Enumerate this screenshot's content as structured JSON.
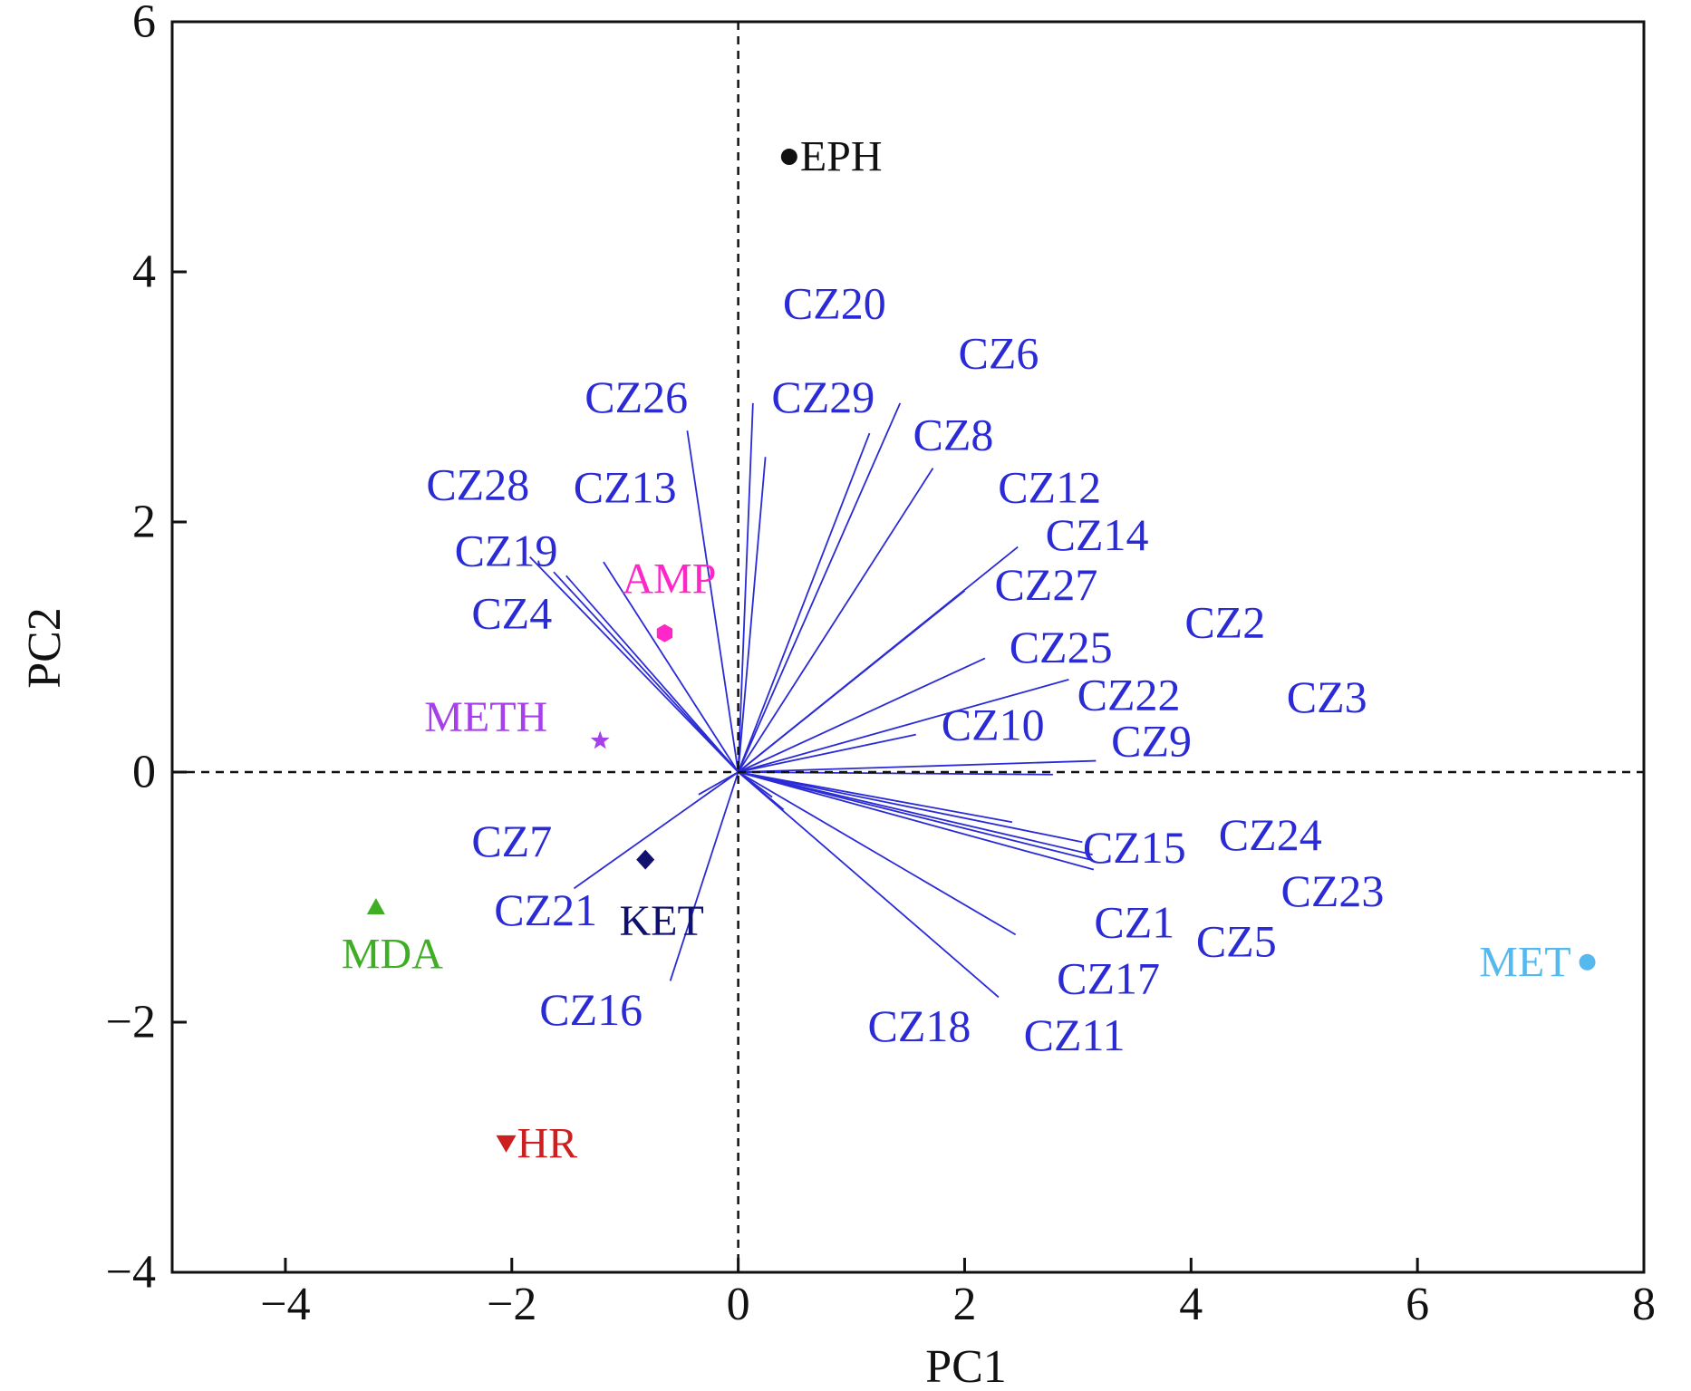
{
  "chart_data": {
    "type": "scatter",
    "subtype": "pca-biplot",
    "title": "",
    "xlabel": "PC1",
    "ylabel": "PC2",
    "xlim": [
      -5,
      8
    ],
    "ylim": [
      -4,
      6
    ],
    "xticks": [
      -4,
      -2,
      0,
      2,
      4,
      6,
      8
    ],
    "yticks": [
      -4,
      -2,
      0,
      2,
      4,
      6
    ],
    "xtick_labels": [
      "−4",
      "−2",
      "0",
      "2",
      "4",
      "6",
      "8"
    ],
    "ytick_labels": [
      "−4",
      "−2",
      "0",
      "2",
      "4",
      "6"
    ],
    "grid": false,
    "reference_lines": {
      "x": 0,
      "y": 0,
      "style": "dashed"
    },
    "loading_color": "#2b2bd6",
    "loadings": [
      {
        "name": "CZ26",
        "x": -0.45,
        "y": 2.73
      },
      {
        "name": "CZ29",
        "x": 0.13,
        "y": 2.95
      },
      {
        "name": "CZ20",
        "x": 0.24,
        "y": 2.52
      },
      {
        "name": "CZ6",
        "x": 1.43,
        "y": 2.95
      },
      {
        "name": "CZ8",
        "x": 1.16,
        "y": 2.71
      },
      {
        "name": "CZ12",
        "x": 1.72,
        "y": 2.43
      },
      {
        "name": "CZ28",
        "x": -1.84,
        "y": 1.72
      },
      {
        "name": "CZ13",
        "x": -1.19,
        "y": 1.68
      },
      {
        "name": "CZ19",
        "x": -1.52,
        "y": 1.57
      },
      {
        "name": "CZ4",
        "x": -1.63,
        "y": 1.6
      },
      {
        "name": "CZ14",
        "x": 2.47,
        "y": 1.8
      },
      {
        "name": "CZ27",
        "x": 2.0,
        "y": 1.45
      },
      {
        "name": "CZ25",
        "x": 2.18,
        "y": 0.91
      },
      {
        "name": "CZ22",
        "x": 2.92,
        "y": 0.74
      },
      {
        "name": "CZ10",
        "x": 1.57,
        "y": 0.3
      },
      {
        "name": "CZ9",
        "x": 3.16,
        "y": 0.09
      },
      {
        "name": "CZ2",
        "x": 2.78,
        "y": -0.02
      },
      {
        "name": "CZ3",
        "x": 2.42,
        "y": -0.4
      },
      {
        "name": "CZ15",
        "x": 3.04,
        "y": -0.56
      },
      {
        "name": "CZ24",
        "x": 3.13,
        "y": -0.66
      },
      {
        "name": "CZ23",
        "x": 3.11,
        "y": -0.7
      },
      {
        "name": "CZ1",
        "x": 3.14,
        "y": -0.78
      },
      {
        "name": "CZ5",
        "x": 2.45,
        "y": -1.3
      },
      {
        "name": "CZ17",
        "x": 2.3,
        "y": -1.8
      },
      {
        "name": "CZ21",
        "x": -1.45,
        "y": -0.93
      },
      {
        "name": "CZ7",
        "x": -0.35,
        "y": -0.18
      },
      {
        "name": "CZ16",
        "x": -0.6,
        "y": -1.67
      },
      {
        "name": "CZ18",
        "x": 0.3,
        "y": -0.2
      },
      {
        "name": "CZ11",
        "x": 0.4,
        "y": -0.3
      }
    ],
    "sample_labels": [
      {
        "text": "CZ20",
        "x": 0.85,
        "y": 3.75
      },
      {
        "text": "CZ6",
        "x": 2.3,
        "y": 3.35
      },
      {
        "text": "CZ26",
        "x": -0.9,
        "y": 3.0
      },
      {
        "text": "CZ29",
        "x": 0.75,
        "y": 3.0
      },
      {
        "text": "CZ8",
        "x": 1.9,
        "y": 2.7
      },
      {
        "text": "CZ28",
        "x": -2.3,
        "y": 2.3
      },
      {
        "text": "CZ13",
        "x": -1.0,
        "y": 2.28
      },
      {
        "text": "CZ12",
        "x": 2.75,
        "y": 2.28
      },
      {
        "text": "CZ14",
        "x": 3.17,
        "y": 1.9
      },
      {
        "text": "CZ19",
        "x": -2.05,
        "y": 1.77
      },
      {
        "text": "CZ27",
        "x": 2.72,
        "y": 1.5
      },
      {
        "text": "CZ4",
        "x": -2.0,
        "y": 1.27
      },
      {
        "text": "CZ2",
        "x": 4.3,
        "y": 1.2
      },
      {
        "text": "CZ25",
        "x": 2.85,
        "y": 1.0
      },
      {
        "text": "CZ22",
        "x": 3.45,
        "y": 0.62
      },
      {
        "text": "CZ3",
        "x": 5.2,
        "y": 0.6
      },
      {
        "text": "CZ10",
        "x": 2.25,
        "y": 0.38
      },
      {
        "text": "CZ9",
        "x": 3.65,
        "y": 0.25
      },
      {
        "text": "CZ7",
        "x": -2.0,
        "y": -0.55
      },
      {
        "text": "CZ24",
        "x": 4.7,
        "y": -0.5
      },
      {
        "text": "CZ15",
        "x": 3.5,
        "y": -0.6
      },
      {
        "text": "CZ23",
        "x": 5.25,
        "y": -0.95
      },
      {
        "text": "CZ21",
        "x": -1.7,
        "y": -1.1
      },
      {
        "text": "CZ1",
        "x": 3.5,
        "y": -1.2
      },
      {
        "text": "CZ5",
        "x": 4.4,
        "y": -1.35
      },
      {
        "text": "CZ17",
        "x": 3.27,
        "y": -1.65
      },
      {
        "text": "CZ16",
        "x": -1.3,
        "y": -1.9
      },
      {
        "text": "CZ18",
        "x": 1.6,
        "y": -2.03
      },
      {
        "text": "CZ11",
        "x": 2.97,
        "y": -2.1
      }
    ],
    "points": [
      {
        "name": "EPH",
        "x": 0.45,
        "y": 4.92,
        "marker": "circle",
        "color": "#111111",
        "label_pos": "right"
      },
      {
        "name": "AMP",
        "x": -0.65,
        "y": 1.11,
        "marker": "hexagon",
        "color": "#ff27c8",
        "label_pos": "above"
      },
      {
        "name": "METH",
        "x": -1.22,
        "y": 0.25,
        "marker": "star",
        "color": "#a640e8",
        "label_pos": "left"
      },
      {
        "name": "KET",
        "x": -0.82,
        "y": -0.7,
        "marker": "diamond",
        "color": "#10106e",
        "label_pos": "below"
      },
      {
        "name": "MDA",
        "x": -3.2,
        "y": -1.08,
        "marker": "triangle-up",
        "color": "#3fae25",
        "label_pos": "below"
      },
      {
        "name": "HR",
        "x": -2.05,
        "y": -2.97,
        "marker": "triangle-down",
        "color": "#cc1f1f",
        "label_pos": "right"
      },
      {
        "name": "MET",
        "x": 7.5,
        "y": -1.52,
        "marker": "circle",
        "color": "#55b8ee",
        "label_pos": "left"
      }
    ]
  }
}
